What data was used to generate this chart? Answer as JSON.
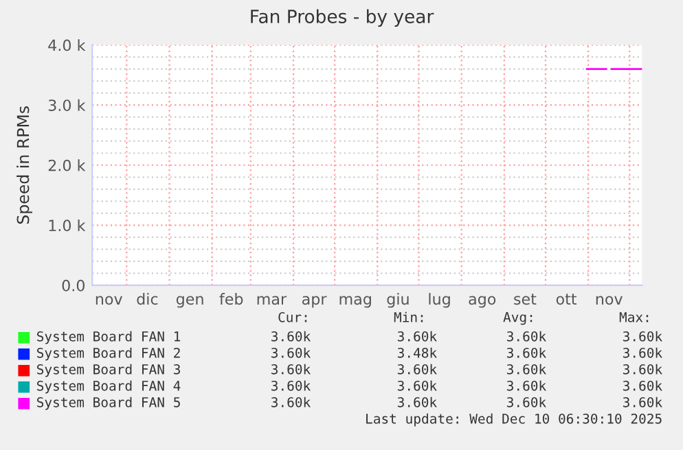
{
  "chart_data": {
    "type": "line",
    "title": "Fan Probes - by year",
    "ylabel": "Speed in RPMs",
    "x": [
      "2025-10-31",
      "2025-11-14",
      "2025-11-16",
      "2025-11-18",
      "2025-12-10"
    ],
    "series": [
      {
        "name": "System Board FAN 1",
        "color": "#22ff22",
        "values": [
          null,
          null,
          null,
          null,
          null
        ]
      },
      {
        "name": "System Board FAN 2",
        "color": "#0022ff",
        "values": [
          null,
          null,
          null,
          null,
          null
        ]
      },
      {
        "name": "System Board FAN 3",
        "color": "#ff0000",
        "values": [
          null,
          null,
          null,
          null,
          null
        ]
      },
      {
        "name": "System Board FAN 4",
        "color": "#00aaaa",
        "values": [
          null,
          null,
          null,
          null,
          null
        ]
      },
      {
        "name": "System Board FAN 5",
        "color": "#ff00ff",
        "values": [
          3600,
          3600,
          null,
          3600,
          3600
        ]
      }
    ],
    "xlim": [
      "2024-11-06",
      "2025-12-10"
    ],
    "xticks": [
      {
        "value": "2024-11-18",
        "label": "nov"
      },
      {
        "value": "2024-12-01",
        "label": null
      },
      {
        "value": "2024-12-16",
        "label": "dic"
      },
      {
        "value": "2025-01-01",
        "label": null
      },
      {
        "value": "2025-01-16",
        "label": "gen"
      },
      {
        "value": "2025-02-01",
        "label": null
      },
      {
        "value": "2025-02-15",
        "label": "feb"
      },
      {
        "value": "2025-03-01",
        "label": null
      },
      {
        "value": "2025-03-16",
        "label": "mar"
      },
      {
        "value": "2025-04-01",
        "label": null
      },
      {
        "value": "2025-04-16",
        "label": "apr"
      },
      {
        "value": "2025-05-01",
        "label": null
      },
      {
        "value": "2025-05-16",
        "label": "mag"
      },
      {
        "value": "2025-06-01",
        "label": null
      },
      {
        "value": "2025-06-16",
        "label": "giu"
      },
      {
        "value": "2025-07-01",
        "label": null
      },
      {
        "value": "2025-07-16",
        "label": "lug"
      },
      {
        "value": "2025-08-01",
        "label": null
      },
      {
        "value": "2025-08-16",
        "label": "ago"
      },
      {
        "value": "2025-09-01",
        "label": null
      },
      {
        "value": "2025-09-16",
        "label": "set"
      },
      {
        "value": "2025-10-01",
        "label": null
      },
      {
        "value": "2025-10-16",
        "label": "ott"
      },
      {
        "value": "2025-11-01",
        "label": null
      },
      {
        "value": "2025-11-16",
        "label": "nov"
      },
      {
        "value": "2025-12-01",
        "label": null
      }
    ],
    "ylim": [
      0,
      4000
    ],
    "yticks": [
      {
        "value": 0,
        "label": "0.0"
      },
      {
        "value": 200,
        "label": null
      },
      {
        "value": 400,
        "label": null
      },
      {
        "value": 600,
        "label": null
      },
      {
        "value": 800,
        "label": null
      },
      {
        "value": 1000,
        "label": "1.0 k"
      },
      {
        "value": 1200,
        "label": null
      },
      {
        "value": 1400,
        "label": null
      },
      {
        "value": 1600,
        "label": null
      },
      {
        "value": 1800,
        "label": null
      },
      {
        "value": 2000,
        "label": "2.0 k"
      },
      {
        "value": 2200,
        "label": null
      },
      {
        "value": 2400,
        "label": null
      },
      {
        "value": 2600,
        "label": null
      },
      {
        "value": 2800,
        "label": null
      },
      {
        "value": 3000,
        "label": "3.0 k"
      },
      {
        "value": 3200,
        "label": null
      },
      {
        "value": 3400,
        "label": null
      },
      {
        "value": 3600,
        "label": null
      },
      {
        "value": 3800,
        "label": null
      },
      {
        "value": 4000,
        "label": "4.0 k"
      }
    ],
    "grid": true,
    "legend": "bottom",
    "marker": "none",
    "line_style": "solid",
    "annotations": [
      "Cur:",
      "Min:",
      "Avg:",
      "Max:",
      "3.60k",
      "3.60k",
      "3.60k",
      "3.60k",
      "3.60k",
      "3.48k",
      "3.60k",
      "3.60k",
      "3.60k",
      "3.60k",
      "3.60k",
      "3.60k",
      "3.60k",
      "3.60k",
      "3.60k",
      "3.60k",
      "3.60k",
      "3.60k",
      "3.60k",
      "3.60k",
      "Last update: Wed Dec 10 06:30:10 2025"
    ]
  }
}
